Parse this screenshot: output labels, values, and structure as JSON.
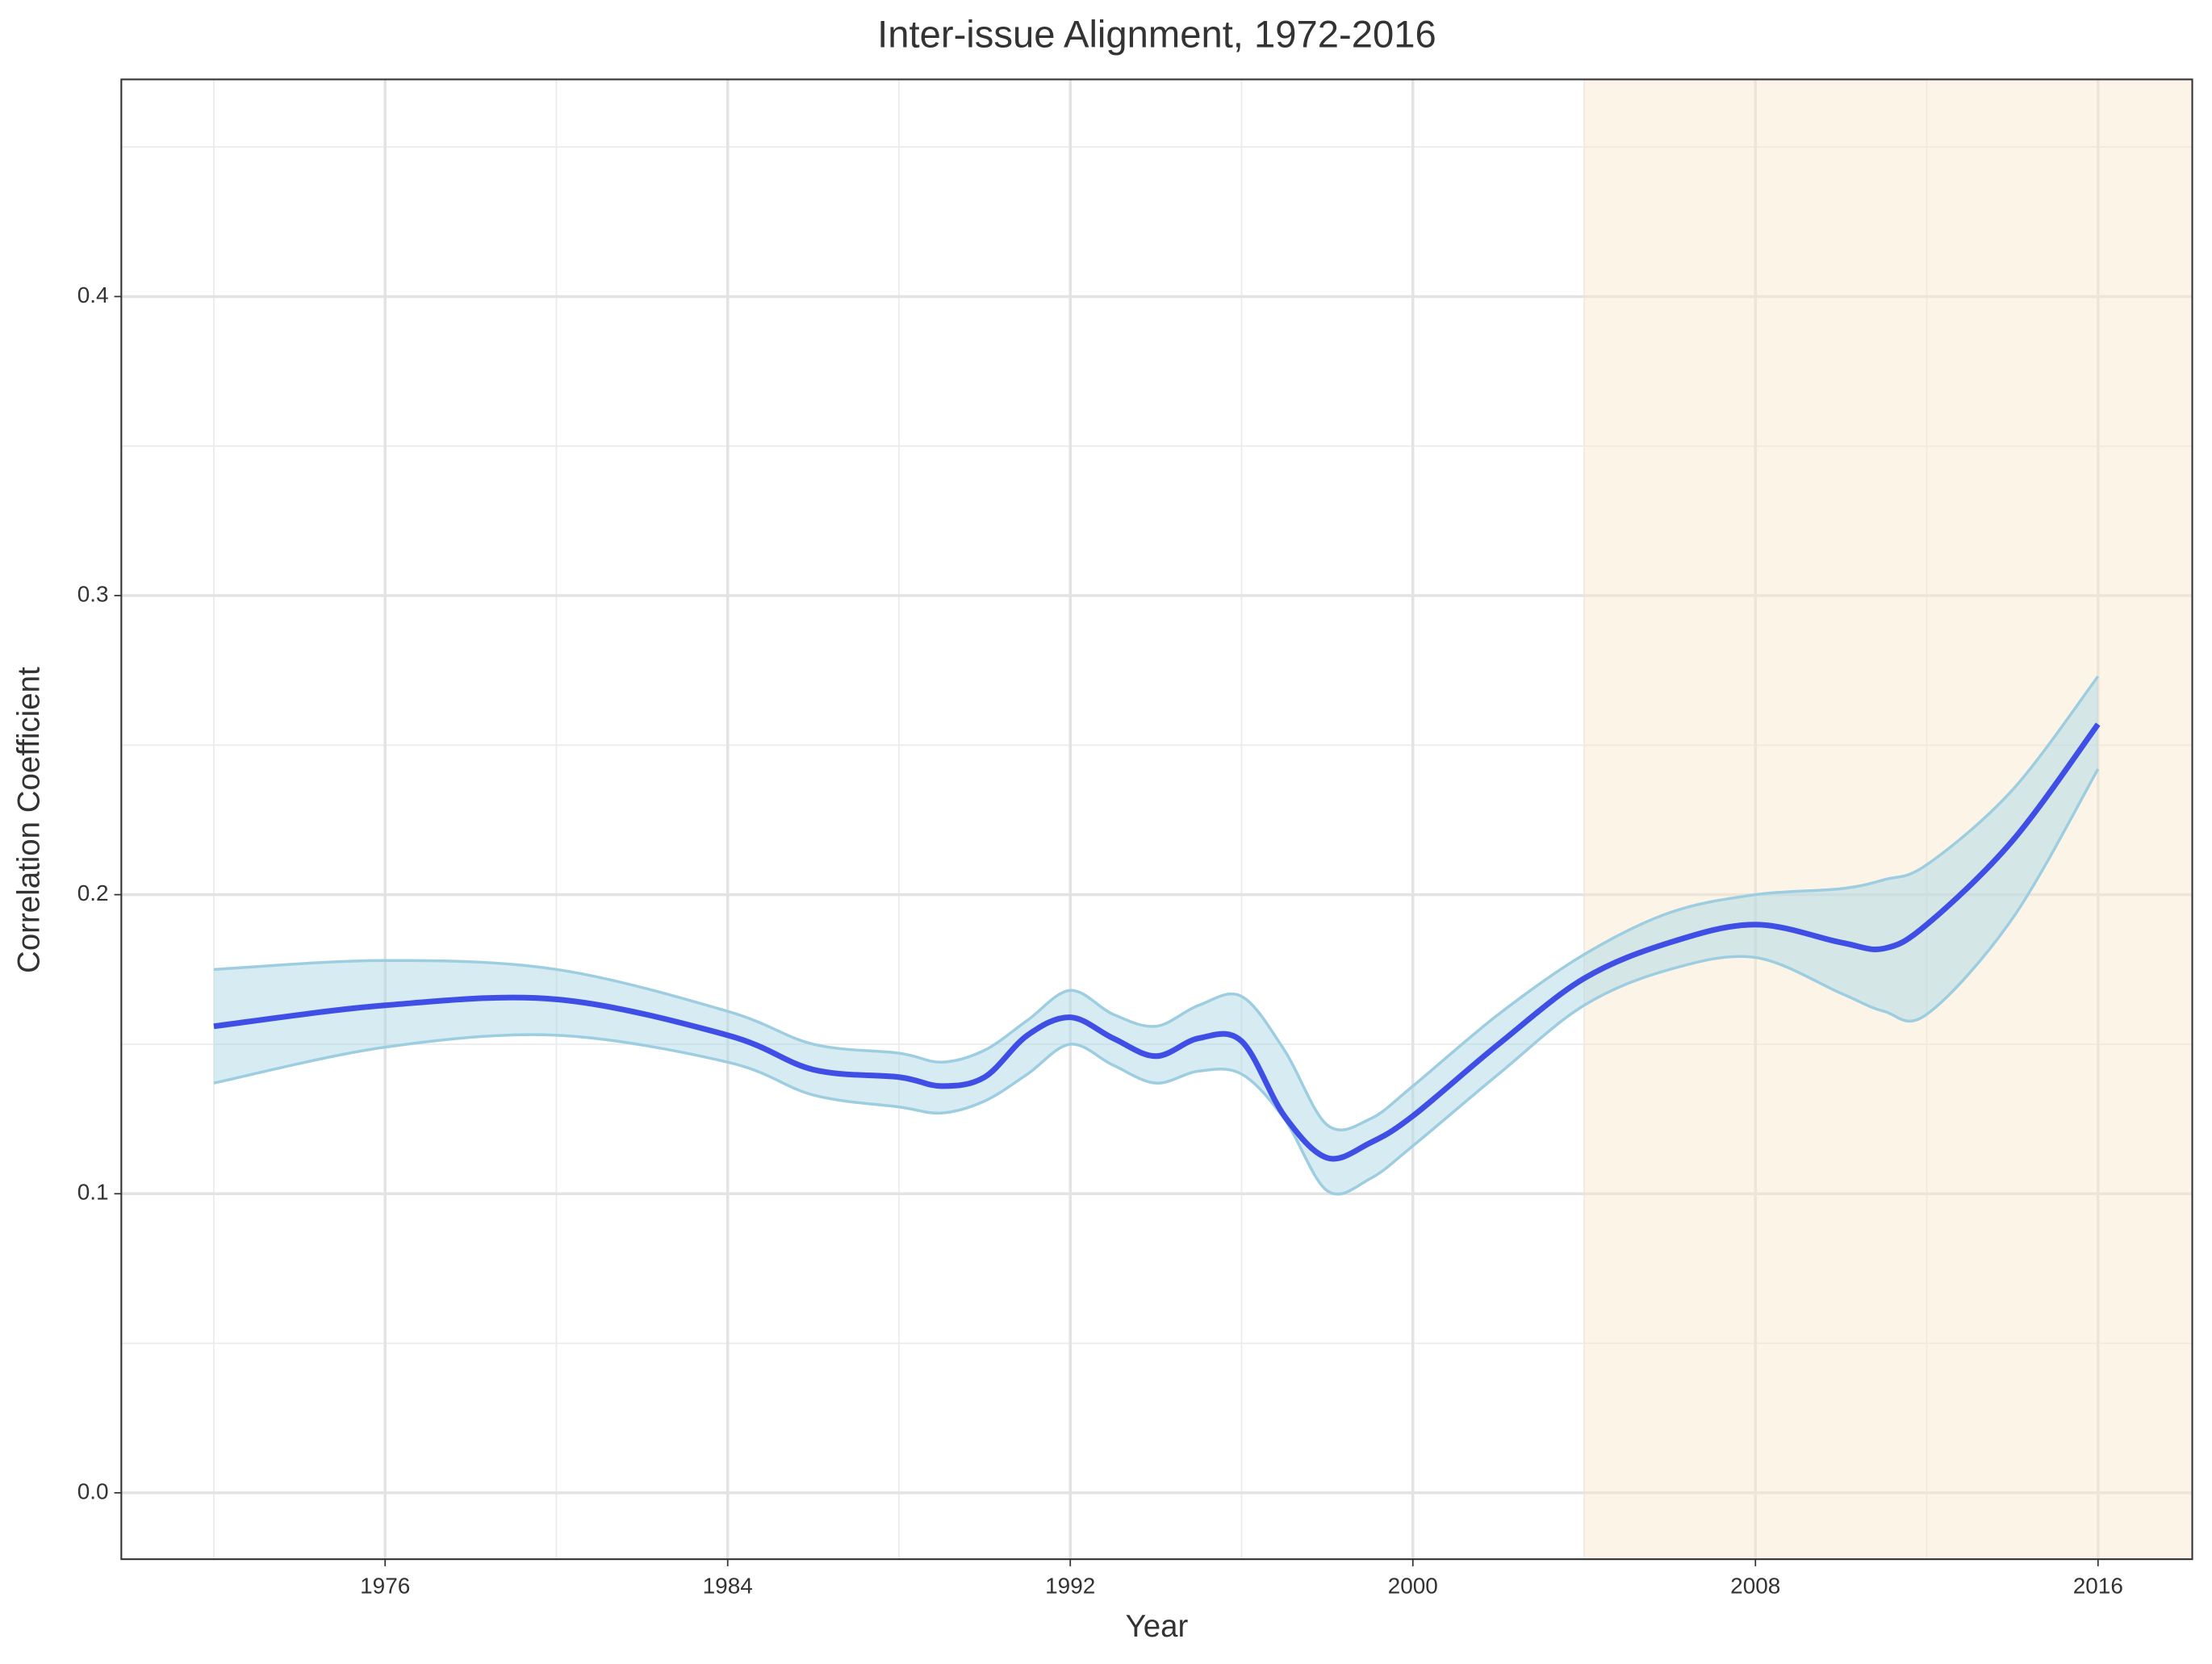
{
  "chart_data": {
    "type": "line",
    "title": "Inter-issue Alignment, 1972-2016",
    "x_label": "Year",
    "y_label": "Correlation Coefficient",
    "x": [
      1972,
      1976,
      1980,
      1984,
      1986,
      1988,
      1989,
      1990,
      1991,
      1992,
      1993,
      1994,
      1995,
      1996,
      1997,
      1998,
      1999,
      2000,
      2002,
      2004,
      2006,
      2008,
      2010,
      2011,
      2012,
      2014,
      2016
    ],
    "line": {
      "color": "#3f4fe6",
      "values": [
        0.156,
        0.163,
        0.165,
        0.153,
        0.1415,
        0.139,
        0.136,
        0.139,
        0.153,
        0.159,
        0.152,
        0.146,
        0.152,
        0.151,
        0.126,
        0.112,
        0.117,
        0.126,
        0.15,
        0.172,
        0.184,
        0.19,
        0.184,
        0.182,
        0.19,
        0.218,
        0.257
      ]
    },
    "band": {
      "color": "#add8e6",
      "edge_color": "#9dcde0",
      "upper": [
        0.175,
        0.178,
        0.175,
        0.161,
        0.15,
        0.147,
        0.144,
        0.148,
        0.158,
        0.168,
        0.16,
        0.156,
        0.163,
        0.166,
        0.148,
        0.123,
        0.125,
        0.136,
        0.16,
        0.18,
        0.194,
        0.2,
        0.202,
        0.205,
        0.21,
        0.235,
        0.273
      ],
      "lower": [
        0.137,
        0.149,
        0.153,
        0.144,
        0.133,
        0.129,
        0.127,
        0.131,
        0.14,
        0.15,
        0.143,
        0.137,
        0.141,
        0.14,
        0.125,
        0.101,
        0.105,
        0.116,
        0.14,
        0.163,
        0.175,
        0.179,
        0.167,
        0.161,
        0.16,
        0.192,
        0.242
      ]
    },
    "highlight": {
      "from": 2004,
      "color": "#fbe6cc"
    },
    "xlim": [
      1969.84,
      2018.2
    ],
    "ylim": [
      -0.0222,
      0.4726
    ],
    "xticks": [
      1976,
      1984,
      1992,
      2000,
      2008,
      2016
    ],
    "yticks": [
      {
        "value": 0,
        "label": "0.0"
      },
      0.1,
      0.2,
      0.3,
      0.4
    ],
    "grid": true
  }
}
